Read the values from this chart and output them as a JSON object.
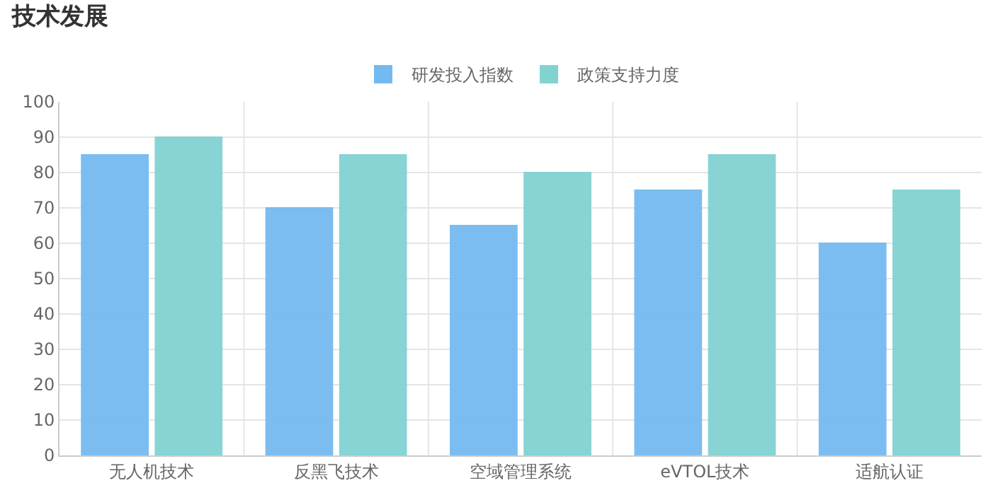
{
  "chart_data": {
    "type": "bar",
    "title": "技术发展",
    "categories": [
      "无人机技术",
      "反黑飞技术",
      "空域管理系统",
      "eVTOL技术",
      "适航认证"
    ],
    "series": [
      {
        "name": "研发投入指数",
        "color": "#74baf0",
        "values": [
          85,
          70,
          65,
          75,
          60
        ]
      },
      {
        "name": "政策支持力度",
        "color": "#82d2d2",
        "values": [
          90,
          85,
          80,
          85,
          75
        ]
      }
    ],
    "ylim": [
      0,
      100
    ],
    "yticks": [
      0,
      10,
      20,
      30,
      40,
      50,
      60,
      70,
      80,
      90,
      100
    ],
    "grid": true,
    "legend": "top"
  }
}
